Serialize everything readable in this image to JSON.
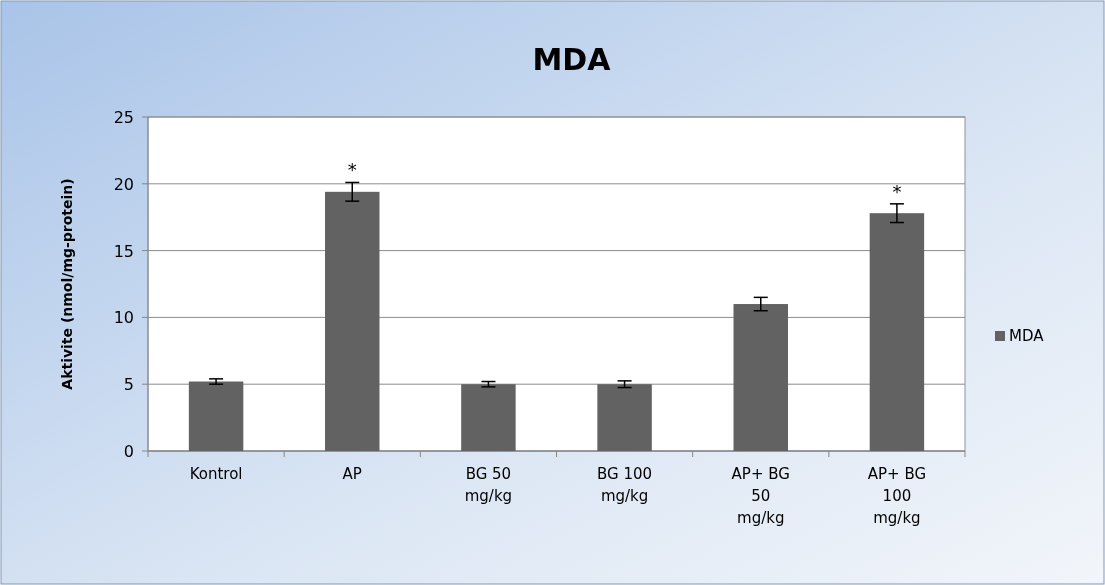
{
  "chart_data": {
    "type": "bar",
    "title": "MDA",
    "ylabel": "Aktivite (nmol/mg-protein)",
    "categories": [
      "Kontrol",
      "AP",
      "BG 50 mg/kg",
      "BG 100 mg/kg",
      "AP+ BG 50 mg/kg",
      "AP+ BG 100 mg/kg"
    ],
    "series": [
      {
        "name": "MDA",
        "color": "#626262",
        "values": [
          5.2,
          19.4,
          5.0,
          5.0,
          11.0,
          17.8
        ],
        "errors": [
          0.2,
          0.7,
          0.2,
          0.25,
          0.5,
          0.7
        ]
      }
    ],
    "ylim": [
      0,
      25
    ],
    "yticks": [
      0,
      5,
      10,
      15,
      20,
      25
    ],
    "grid": "y",
    "legend": "right",
    "annotations": [
      {
        "text": "*",
        "x": "AP",
        "y": 20.1
      },
      {
        "text": "*",
        "x": "AP+ BG 100 mg/kg",
        "y": 18.5
      }
    ]
  }
}
